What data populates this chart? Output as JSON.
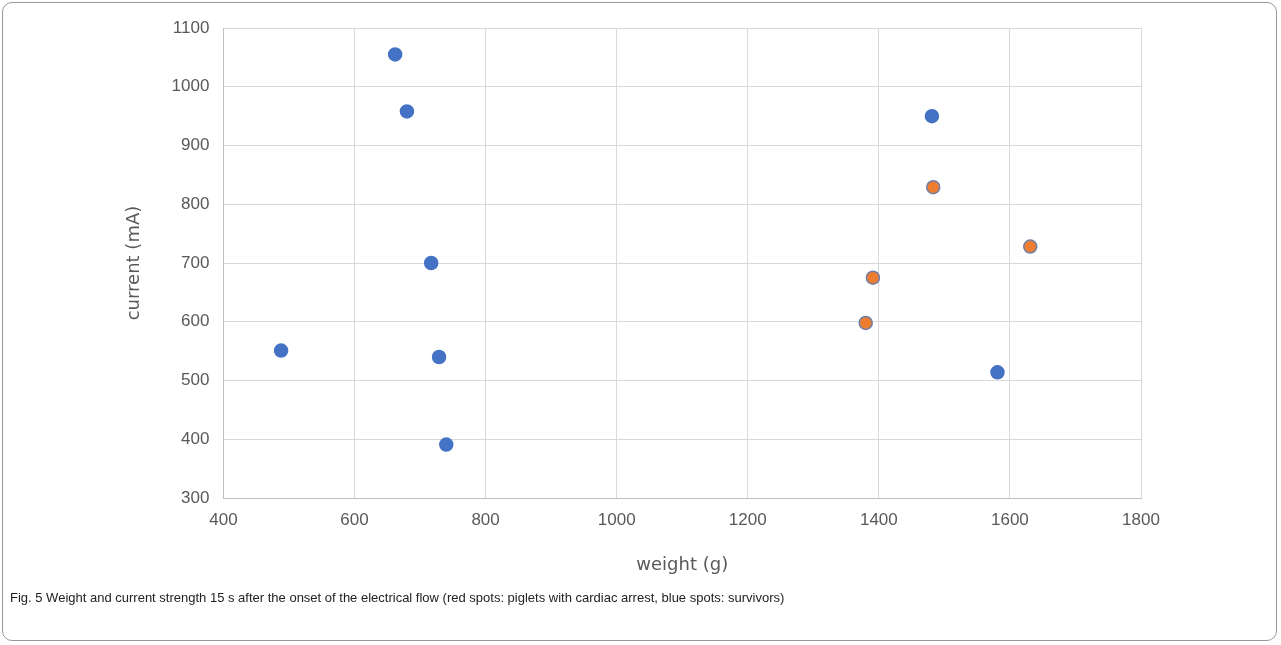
{
  "chart_data": {
    "type": "scatter",
    "xlabel": "weight (g)",
    "ylabel": "current (mA)",
    "xlim": [
      400,
      1800
    ],
    "xticks": [
      400,
      600,
      800,
      1000,
      1200,
      1400,
      1600,
      1800
    ],
    "ylim": [
      300,
      1100
    ],
    "yticks": [
      300,
      400,
      500,
      600,
      700,
      800,
      900,
      1000,
      1100
    ],
    "grid": true,
    "legend": false,
    "marker": "circle",
    "series": [
      {
        "color": "#4472c4",
        "x": [
          662,
          680,
          717,
          488,
          729,
          740,
          1481,
          1581
        ],
        "values": [
          1055,
          958,
          700,
          551,
          540,
          391,
          950,
          514
        ]
      },
      {
        "color": "#ed7d31",
        "x": [
          1483,
          1631,
          1391,
          1380
        ],
        "values": [
          829,
          728,
          675,
          598
        ]
      }
    ],
    "annotations": [
      "Fig. 5  Weight and current strength 15 s after the onset of the electrical flow (red spots: piglets with cardiac arrest, blue spots: survivors)"
    ]
  }
}
